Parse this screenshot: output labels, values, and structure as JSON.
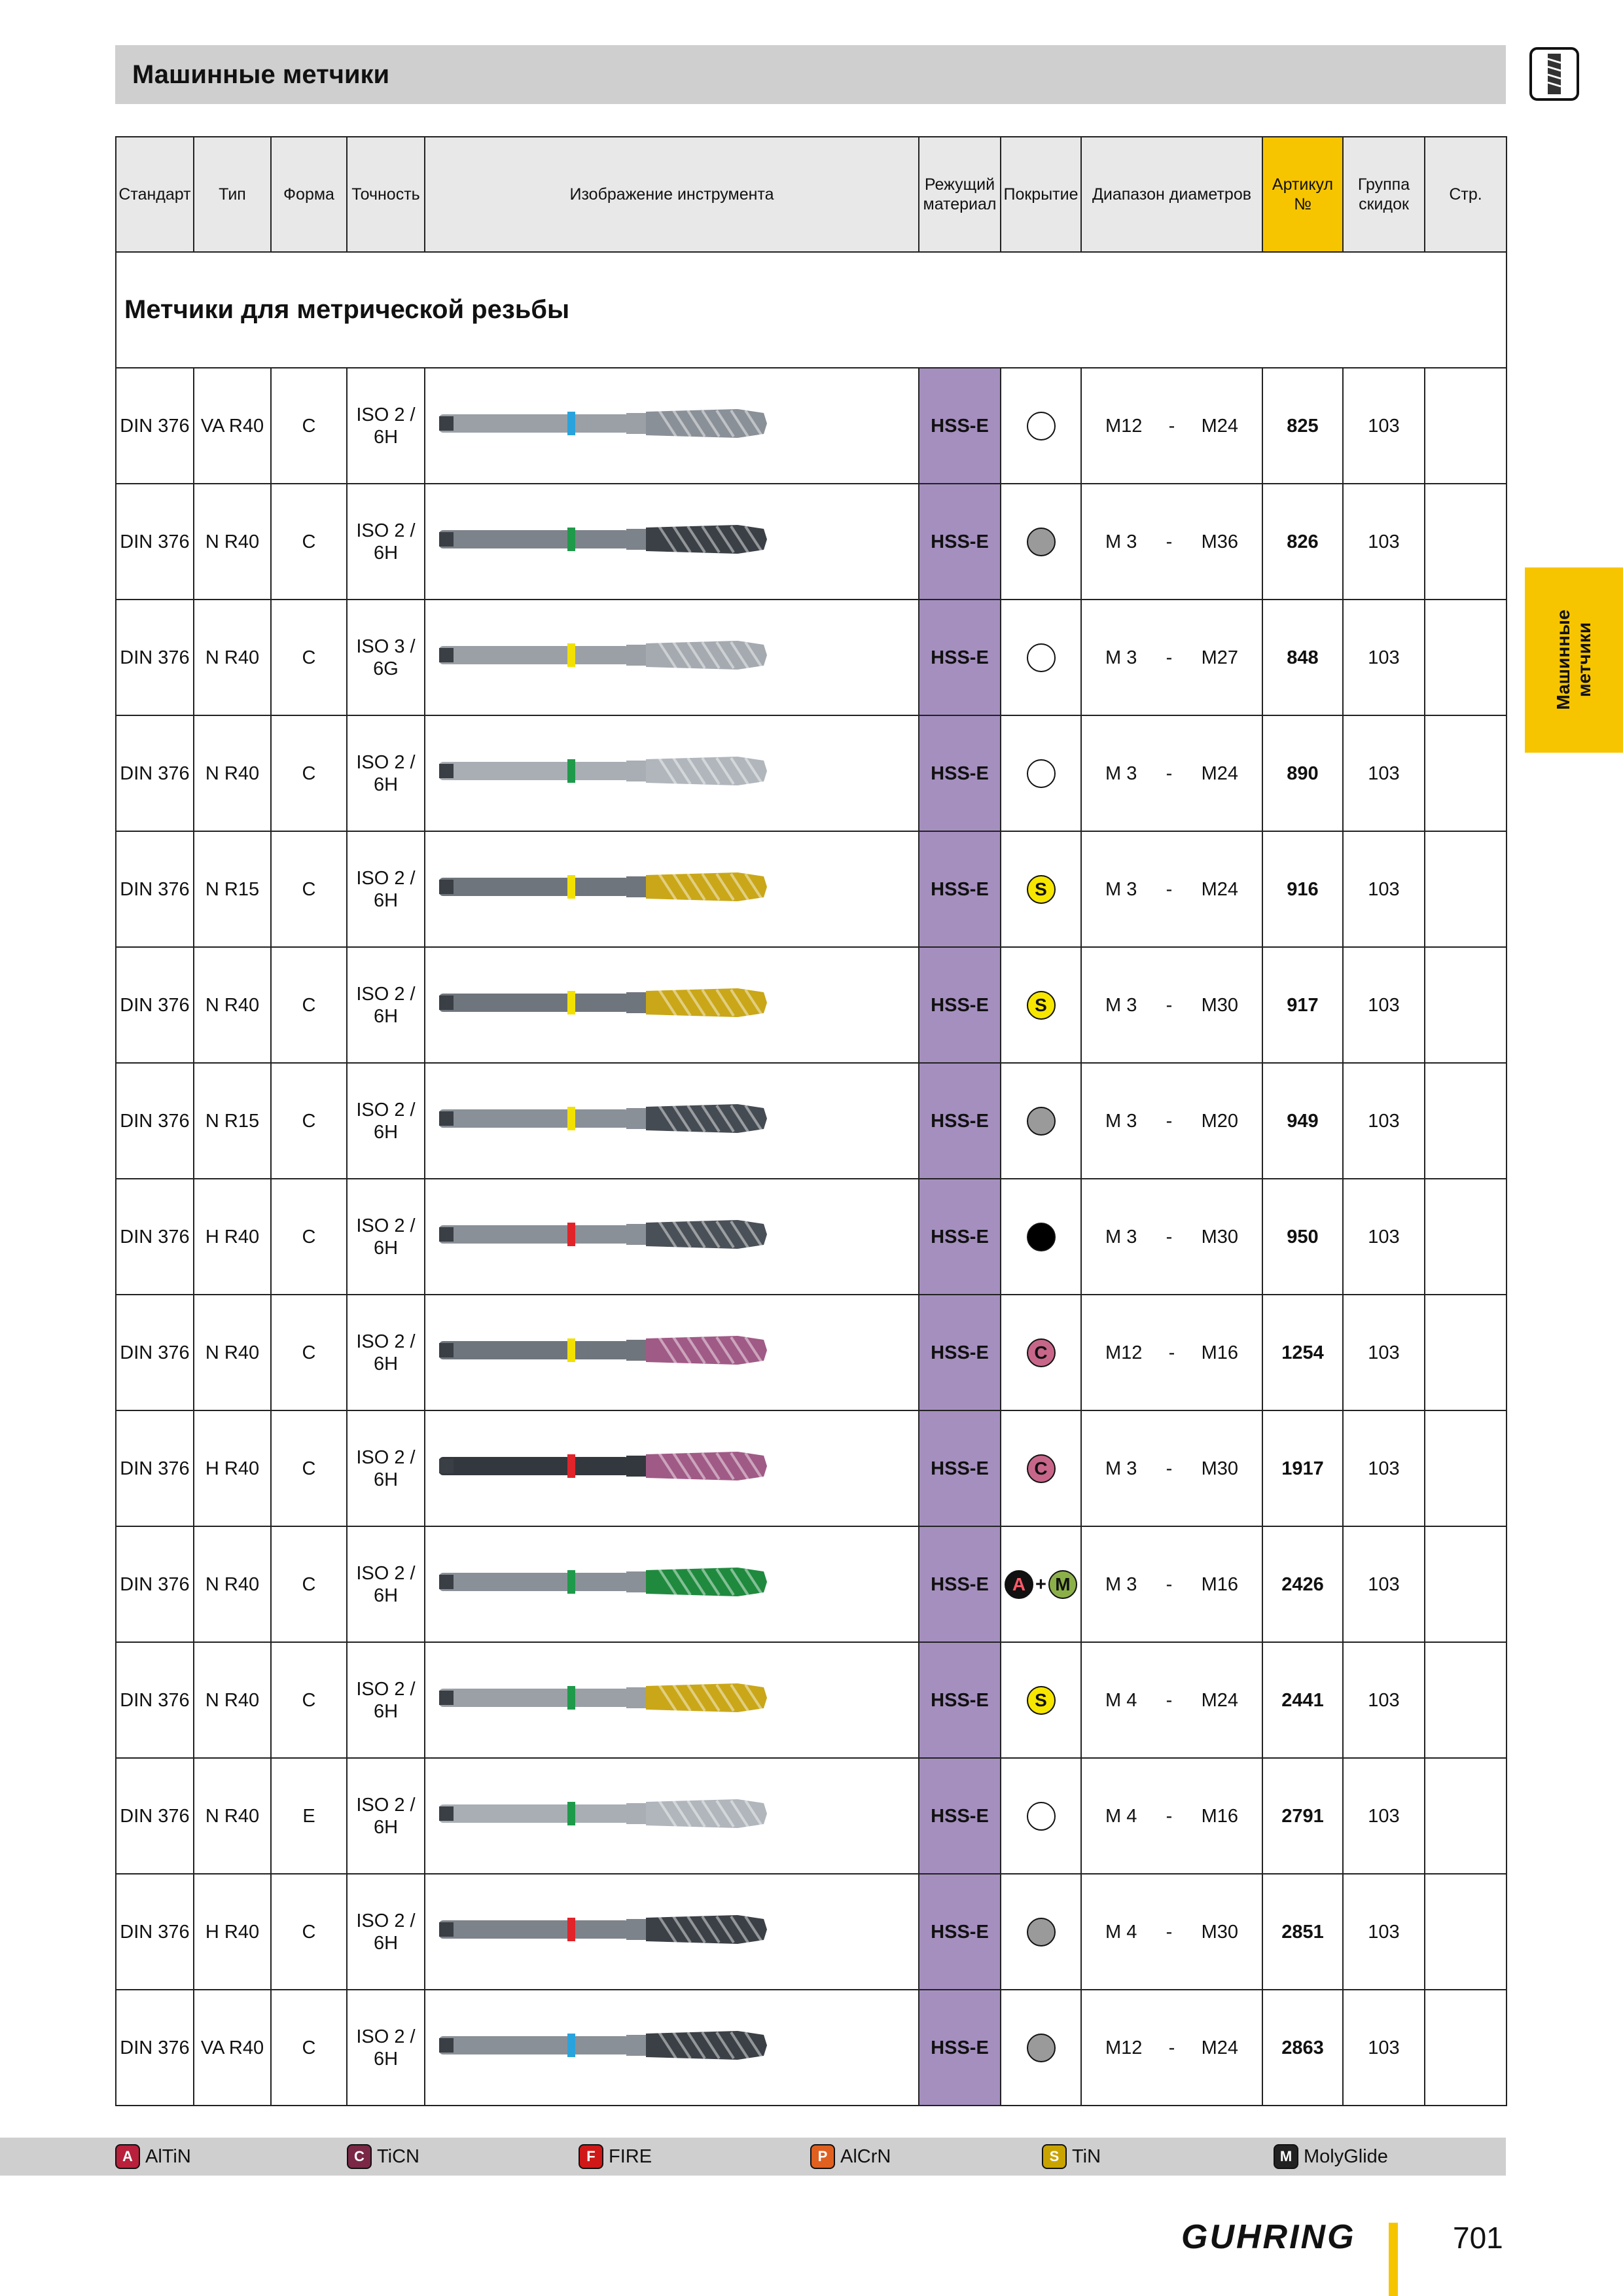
{
  "header": {
    "title": "Машинные метчики"
  },
  "side_tab": "Машинные метчики",
  "table": {
    "columns": [
      "Стандарт",
      "Тип",
      "Форма",
      "Точность",
      "Изображение инструмента",
      "Режущий материал",
      "Покрытие",
      "Диапазон диаметров",
      "Артикул №",
      "Группа скидок",
      "Стр."
    ],
    "section_title": "Метчики для метрической резьбы",
    "range_separator": "-",
    "rows": [
      {
        "standard": "DIN 376",
        "type": "VA R40",
        "form": "C",
        "accuracy": "ISO 2 / 6H",
        "tool": {
          "band": "#2aa3dc",
          "flute": "#8a9097",
          "shank": "#9aa0a6"
        },
        "material": "HSS-E",
        "coating": {
          "badges": [
            {
              "color": "#ffffff"
            }
          ]
        },
        "range": [
          "M12",
          "M24"
        ],
        "article": "825",
        "group": "103"
      },
      {
        "standard": "DIN 376",
        "type": "N R40",
        "form": "C",
        "accuracy": "ISO 2 / 6H",
        "tool": {
          "band": "#1f9a4a",
          "flute": "#3b4046",
          "shank": "#7d838a"
        },
        "material": "HSS-E",
        "coating": {
          "badges": [
            {
              "color": "#9a9a9a"
            }
          ]
        },
        "range": [
          "M 3",
          "M36"
        ],
        "article": "826",
        "group": "103"
      },
      {
        "standard": "DIN 376",
        "type": "N R40",
        "form": "C",
        "accuracy": "ISO 3 / 6G",
        "tool": {
          "band": "#f2e000",
          "flute": "#a4aab0",
          "shank": "#9aa0a6"
        },
        "material": "HSS-E",
        "coating": {
          "badges": [
            {
              "color": "#ffffff"
            }
          ]
        },
        "range": [
          "M 3",
          "M27"
        ],
        "article": "848",
        "group": "103"
      },
      {
        "standard": "DIN 376",
        "type": "N R40",
        "form": "C",
        "accuracy": "ISO 2 / 6H",
        "tool": {
          "band": "#1f9a4a",
          "flute": "#b0b6bc",
          "shank": "#a8aeb4"
        },
        "material": "HSS-E",
        "coating": {
          "badges": [
            {
              "color": "#ffffff"
            }
          ]
        },
        "range": [
          "M 3",
          "M24"
        ],
        "article": "890",
        "group": "103"
      },
      {
        "standard": "DIN 376",
        "type": "N R15",
        "form": "C",
        "accuracy": "ISO 2 / 6H",
        "tool": {
          "band": "#f2e000",
          "flute": "#c9a718",
          "shank": "#6f757c"
        },
        "material": "HSS-E",
        "coating": {
          "badges": [
            {
              "letter": "S",
              "color": "#f7e600"
            }
          ]
        },
        "range": [
          "M 3",
          "M24"
        ],
        "article": "916",
        "group": "103"
      },
      {
        "standard": "DIN 376",
        "type": "N R40",
        "form": "C",
        "accuracy": "ISO 2 / 6H",
        "tool": {
          "band": "#f2e000",
          "flute": "#c9a718",
          "shank": "#6f757c"
        },
        "material": "HSS-E",
        "coating": {
          "badges": [
            {
              "letter": "S",
              "color": "#f7e600"
            }
          ]
        },
        "range": [
          "M 3",
          "M30"
        ],
        "article": "917",
        "group": "103"
      },
      {
        "standard": "DIN 376",
        "type": "N R15",
        "form": "C",
        "accuracy": "ISO 2 / 6H",
        "tool": {
          "band": "#f2e000",
          "flute": "#454b52",
          "shank": "#8a9097"
        },
        "material": "HSS-E",
        "coating": {
          "badges": [
            {
              "color": "#9a9a9a"
            }
          ]
        },
        "range": [
          "M 3",
          "M20"
        ],
        "article": "949",
        "group": "103"
      },
      {
        "standard": "DIN 376",
        "type": "H R40",
        "form": "C",
        "accuracy": "ISO 2 / 6H",
        "tool": {
          "band": "#e0242a",
          "flute": "#4a5057",
          "shank": "#8a9097"
        },
        "material": "HSS-E",
        "coating": {
          "badges": [
            {
              "color": "#000000"
            }
          ]
        },
        "range": [
          "M 3",
          "M30"
        ],
        "article": "950",
        "group": "103"
      },
      {
        "standard": "DIN 376",
        "type": "N R40",
        "form": "C",
        "accuracy": "ISO 2 / 6H",
        "tool": {
          "band": "#f2e000",
          "flute": "#a05a86",
          "shank": "#6f757c"
        },
        "material": "HSS-E",
        "coating": {
          "badges": [
            {
              "letter": "C",
              "color": "#c8668a"
            }
          ]
        },
        "range": [
          "M12",
          "M16"
        ],
        "article": "1254",
        "group": "103"
      },
      {
        "standard": "DIN 376",
        "type": "H R40",
        "form": "C",
        "accuracy": "ISO 2 / 6H",
        "tool": {
          "band": "#e0242a",
          "flute": "#a05a86",
          "shank": "#33383e"
        },
        "material": "HSS-E",
        "coating": {
          "badges": [
            {
              "letter": "C",
              "color": "#c8668a"
            }
          ]
        },
        "range": [
          "M 3",
          "M30"
        ],
        "article": "1917",
        "group": "103"
      },
      {
        "standard": "DIN 376",
        "type": "N R40",
        "form": "C",
        "accuracy": "ISO 2 / 6H",
        "tool": {
          "band": "#1f9a4a",
          "flute": "#1f8a3e",
          "shank": "#8a9097"
        },
        "material": "HSS-E",
        "coating": {
          "badges": [
            {
              "letter": "A",
              "color": "#111111"
            },
            {
              "letter": "M",
              "color": "#8bb04a"
            }
          ],
          "joiner": "+"
        },
        "range": [
          "M 3",
          "M16"
        ],
        "article": "2426",
        "group": "103"
      },
      {
        "standard": "DIN 376",
        "type": "N R40",
        "form": "C",
        "accuracy": "ISO 2 / 6H",
        "tool": {
          "band": "#1f9a4a",
          "flute": "#c9a718",
          "shank": "#9aa0a6"
        },
        "material": "HSS-E",
        "coating": {
          "badges": [
            {
              "letter": "S",
              "color": "#f7e600"
            }
          ]
        },
        "range": [
          "M 4",
          "M24"
        ],
        "article": "2441",
        "group": "103"
      },
      {
        "standard": "DIN 376",
        "type": "N R40",
        "form": "E",
        "accuracy": "ISO 2 / 6H",
        "tool": {
          "band": "#1f9a4a",
          "flute": "#b0b6bc",
          "shank": "#a8aeb4"
        },
        "material": "HSS-E",
        "coating": {
          "badges": [
            {
              "color": "#ffffff"
            }
          ]
        },
        "range": [
          "M 4",
          "M16"
        ],
        "article": "2791",
        "group": "103"
      },
      {
        "standard": "DIN 376",
        "type": "H R40",
        "form": "C",
        "accuracy": "ISO 2 / 6H",
        "tool": {
          "band": "#e0242a",
          "flute": "#3b4046",
          "shank": "#7d838a"
        },
        "material": "HSS-E",
        "coating": {
          "badges": [
            {
              "color": "#9a9a9a"
            }
          ]
        },
        "range": [
          "M 4",
          "M30"
        ],
        "article": "2851",
        "group": "103"
      },
      {
        "standard": "DIN 376",
        "type": "VA R40",
        "form": "C",
        "accuracy": "ISO 2 / 6H",
        "tool": {
          "band": "#2aa3dc",
          "flute": "#3b4046",
          "shank": "#8a9097"
        },
        "material": "HSS-E",
        "coating": {
          "badges": [
            {
              "color": "#9a9a9a"
            }
          ]
        },
        "range": [
          "M12",
          "M24"
        ],
        "article": "2863",
        "group": "103"
      }
    ]
  },
  "legend": [
    {
      "letter": "A",
      "color": "#b8203c",
      "name": "AlTiN"
    },
    {
      "letter": "C",
      "color": "#7a2846",
      "name": "TiCN"
    },
    {
      "letter": "F",
      "color": "#d01818",
      "name": "FIRE"
    },
    {
      "letter": "P",
      "color": "#e06020",
      "name": "AlCrN"
    },
    {
      "letter": "S",
      "color": "#c9a400",
      "name": "TiN"
    },
    {
      "letter": "M",
      "color": "#222222",
      "name": "MolyGlide"
    }
  ],
  "footer": {
    "brand": "GUHRING",
    "page_number": "701"
  }
}
